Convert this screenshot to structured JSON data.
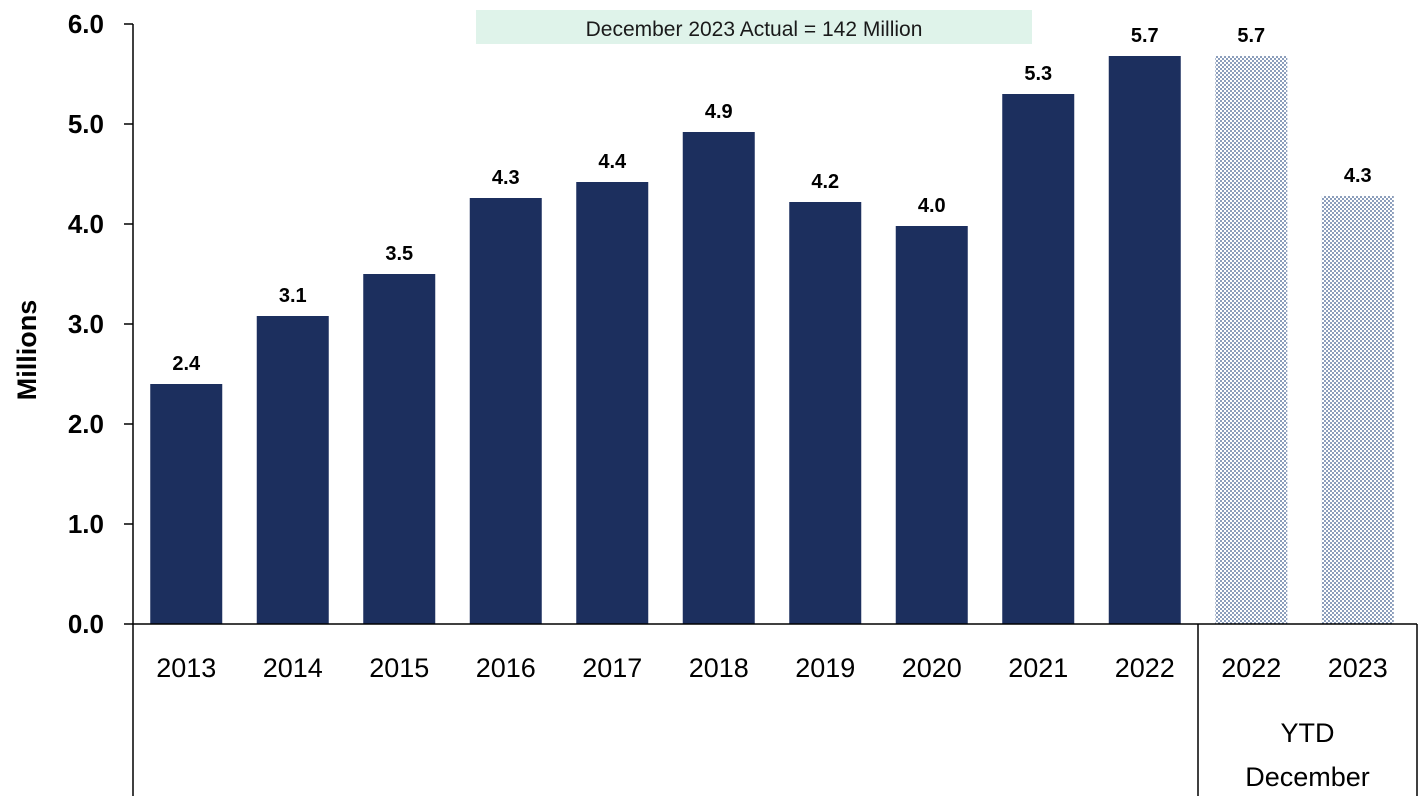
{
  "chart_data": {
    "type": "bar",
    "title": "",
    "ylabel": "Millions",
    "xlabel": "",
    "ylim": [
      0,
      6
    ],
    "yticks": [
      "0.0",
      "1.0",
      "2.0",
      "3.0",
      "4.0",
      "5.0",
      "6.0"
    ],
    "grid": false,
    "legend": "none",
    "annotation": "December 2023 Actual = 142 Million",
    "categories": [
      "2013",
      "2014",
      "2015",
      "2016",
      "2017",
      "2018",
      "2019",
      "2020",
      "2021",
      "2022",
      "2022",
      "2023"
    ],
    "values": [
      2.4,
      3.08,
      3.5,
      4.26,
      4.42,
      4.92,
      4.22,
      3.98,
      5.3,
      5.68,
      5.68,
      4.28
    ],
    "data_labels": [
      "2.4",
      "3.1",
      "3.5",
      "4.3",
      "4.4",
      "4.9",
      "4.2",
      "4.0",
      "5.3",
      "5.7",
      "5.7",
      "4.3"
    ],
    "group_label_lines": [
      "YTD",
      "December"
    ],
    "group_members": [
      "2022",
      "2023"
    ],
    "colors": {
      "bar": "#1c2f5e",
      "ytd_pattern": "#3a5a8c",
      "annotation_bg": "#dff3ea",
      "axis": "#000000"
    }
  }
}
